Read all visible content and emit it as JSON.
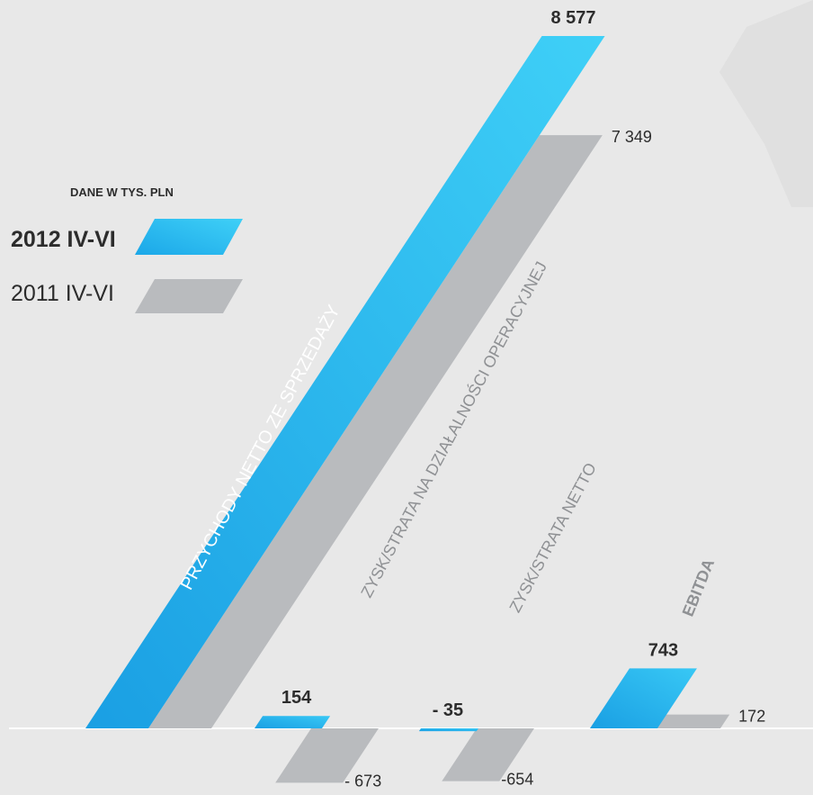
{
  "legend": {
    "title": "DANE W TYS. PLN",
    "current_label": "2012 IV-VI",
    "previous_label": "2011 IV-VI"
  },
  "colors": {
    "current": "#1ba7e8",
    "current_light": "#3fd0f7",
    "previous": "#b9bbbe",
    "background": "#e8e8e8",
    "category_text": "#8f9194",
    "value_text": "#2c2c2c"
  },
  "chart_data": {
    "type": "bar",
    "categories": [
      "PRZYCHODY NETTO ZE SPRZEDAŻY",
      "ZYSK/STRATA NA DZIAŁALNOŚCI OPERACYJNEJ",
      "ZYSK/STRATA NETTO",
      "EBITDA"
    ],
    "series": [
      {
        "name": "2012 IV-VI",
        "values": [
          8577,
          154,
          -35,
          743
        ],
        "labels": [
          "8 577",
          "154",
          "- 35",
          "743"
        ]
      },
      {
        "name": "2011 IV-VI",
        "values": [
          7349,
          -673,
          -654,
          172
        ],
        "labels": [
          "7 349",
          "- 673",
          "-654",
          "172"
        ]
      }
    ],
    "unit": "tys. PLN",
    "style": "slanted parallelogram bars on a common baseline"
  }
}
